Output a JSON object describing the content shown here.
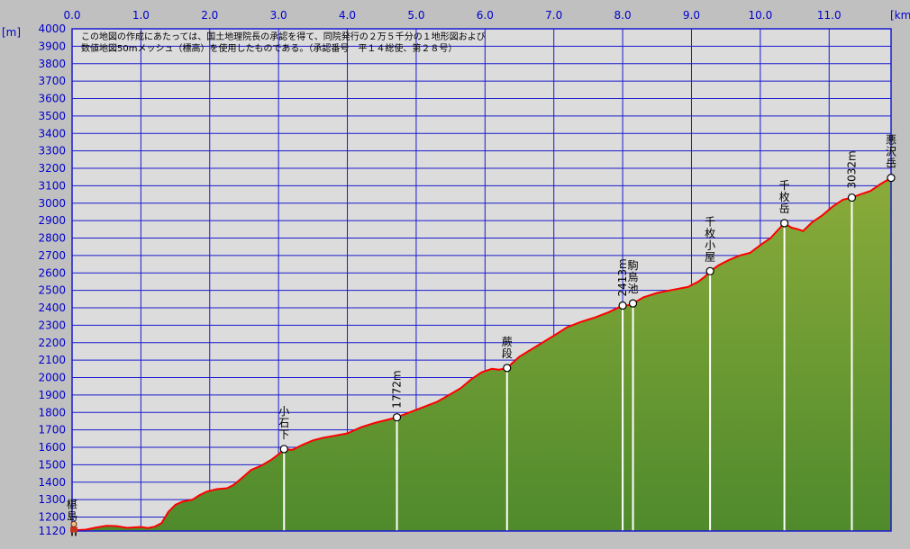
{
  "chart_data": {
    "type": "area",
    "x_unit": "[km]",
    "y_unit": "[m]",
    "xlim": [
      0,
      11.9
    ],
    "ylim": [
      1120,
      4000
    ],
    "x_ticks": [
      0,
      1,
      2,
      3,
      4,
      5,
      6,
      7,
      8,
      9,
      10,
      11
    ],
    "x_tick_labels": [
      "0.0",
      "1.0",
      "2.0",
      "3.0",
      "4.0",
      "5.0",
      "6.0",
      "7.0",
      "8.0",
      "9.0",
      "10.0",
      "11.0"
    ],
    "y_ticks": [
      1120,
      1200,
      1300,
      1400,
      1500,
      1600,
      1700,
      1800,
      1900,
      2000,
      2100,
      2200,
      2300,
      2400,
      2500,
      2600,
      2700,
      2800,
      2900,
      3000,
      3100,
      3200,
      3300,
      3400,
      3500,
      3600,
      3700,
      3800,
      3900,
      4000
    ],
    "y_tick_labels": [
      "1120",
      "1200",
      "1300",
      "1400",
      "1500",
      "1600",
      "1700",
      "1800",
      "1900",
      "2000",
      "2100",
      "2200",
      "2300",
      "2400",
      "2500",
      "2600",
      "2700",
      "2800",
      "2900",
      "3000",
      "3100",
      "3200",
      "3300",
      "3400",
      "3500",
      "3600",
      "3700",
      "3800",
      "3900",
      "4000"
    ],
    "grid": true,
    "note_lines": [
      "この地図の作成にあたっては、国土地理院長の承認を得て、同院発行の２万５千分の１地形図および",
      "数値地図50mメッシュ（標高）を使用したものである。（承認番号　平１４総使、第２８号）"
    ],
    "colors": {
      "plot_bg": "#dcdcdc",
      "grid": "#1a1ad0",
      "fill_top": "#8aab3a",
      "fill_bottom": "#4f8a2c",
      "profile_line": "#ff0000",
      "axis_text": "#0000cc",
      "outer_bg": "#c0c0c0"
    },
    "profile": [
      [
        0.0,
        1123
      ],
      [
        0.2,
        1128
      ],
      [
        0.35,
        1140
      ],
      [
        0.5,
        1150
      ],
      [
        0.65,
        1148
      ],
      [
        0.8,
        1138
      ],
      [
        1.0,
        1143
      ],
      [
        1.1,
        1137
      ],
      [
        1.2,
        1145
      ],
      [
        1.3,
        1165
      ],
      [
        1.4,
        1230
      ],
      [
        1.5,
        1270
      ],
      [
        1.6,
        1288
      ],
      [
        1.75,
        1300
      ],
      [
        1.85,
        1325
      ],
      [
        1.95,
        1345
      ],
      [
        2.1,
        1360
      ],
      [
        2.25,
        1365
      ],
      [
        2.35,
        1385
      ],
      [
        2.5,
        1435
      ],
      [
        2.6,
        1470
      ],
      [
        2.75,
        1495
      ],
      [
        2.9,
        1530
      ],
      [
        3.0,
        1560
      ],
      [
        3.08,
        1590
      ],
      [
        3.2,
        1585
      ],
      [
        3.35,
        1615
      ],
      [
        3.5,
        1640
      ],
      [
        3.65,
        1655
      ],
      [
        3.8,
        1665
      ],
      [
        4.0,
        1680
      ],
      [
        4.2,
        1715
      ],
      [
        4.4,
        1740
      ],
      [
        4.55,
        1755
      ],
      [
        4.72,
        1772
      ],
      [
        4.9,
        1800
      ],
      [
        5.1,
        1830
      ],
      [
        5.3,
        1860
      ],
      [
        5.5,
        1905
      ],
      [
        5.65,
        1940
      ],
      [
        5.8,
        1990
      ],
      [
        5.95,
        2030
      ],
      [
        6.1,
        2050
      ],
      [
        6.2,
        2045
      ],
      [
        6.32,
        2055
      ],
      [
        6.5,
        2120
      ],
      [
        6.75,
        2180
      ],
      [
        7.0,
        2240
      ],
      [
        7.2,
        2290
      ],
      [
        7.4,
        2320
      ],
      [
        7.6,
        2345
      ],
      [
        7.8,
        2375
      ],
      [
        8.0,
        2413
      ],
      [
        8.08,
        2415
      ],
      [
        8.15,
        2425
      ],
      [
        8.3,
        2460
      ],
      [
        8.5,
        2485
      ],
      [
        8.75,
        2505
      ],
      [
        8.95,
        2520
      ],
      [
        9.1,
        2550
      ],
      [
        9.2,
        2580
      ],
      [
        9.27,
        2610
      ],
      [
        9.4,
        2645
      ],
      [
        9.55,
        2675
      ],
      [
        9.7,
        2700
      ],
      [
        9.85,
        2715
      ],
      [
        10.0,
        2760
      ],
      [
        10.15,
        2800
      ],
      [
        10.3,
        2865
      ],
      [
        10.35,
        2885
      ],
      [
        10.45,
        2860
      ],
      [
        10.55,
        2850
      ],
      [
        10.62,
        2840
      ],
      [
        10.75,
        2890
      ],
      [
        10.9,
        2930
      ],
      [
        11.05,
        2980
      ],
      [
        11.2,
        3020
      ],
      [
        11.33,
        3032
      ],
      [
        11.45,
        3050
      ],
      [
        11.6,
        3070
      ],
      [
        11.75,
        3110
      ],
      [
        11.9,
        3145
      ]
    ],
    "waypoints": [
      {
        "x": 0.0,
        "y": 1123,
        "label": "椹島",
        "vertical": true,
        "post": true,
        "marker": "hiker"
      },
      {
        "x": 3.08,
        "y": 1590,
        "label": "小石下",
        "vertical": true,
        "post": true,
        "marker": "circle"
      },
      {
        "x": 4.72,
        "y": 1772,
        "label": "1772m",
        "vertical": false,
        "post": true,
        "marker": "circle"
      },
      {
        "x": 6.32,
        "y": 2055,
        "label": "蕨段",
        "vertical": true,
        "post": true,
        "marker": "circle"
      },
      {
        "x": 8.0,
        "y": 2413,
        "label": "2413m",
        "vertical": false,
        "post": true,
        "marker": "circle"
      },
      {
        "x": 8.15,
        "y": 2425,
        "label": "駒鳥池",
        "vertical": true,
        "post": true,
        "marker": "circle"
      },
      {
        "x": 9.27,
        "y": 2610,
        "label": "千枚小屋",
        "vertical": true,
        "post": true,
        "marker": "circle"
      },
      {
        "x": 10.35,
        "y": 2885,
        "label": "千枚岳",
        "vertical": true,
        "post": true,
        "marker": "circle"
      },
      {
        "x": 11.33,
        "y": 3032,
        "label": "3032m",
        "vertical": false,
        "post": true,
        "marker": "circle"
      },
      {
        "x": 11.9,
        "y": 3145,
        "label": "悪沢岳",
        "vertical": true,
        "post": false,
        "marker": "circle"
      }
    ]
  }
}
